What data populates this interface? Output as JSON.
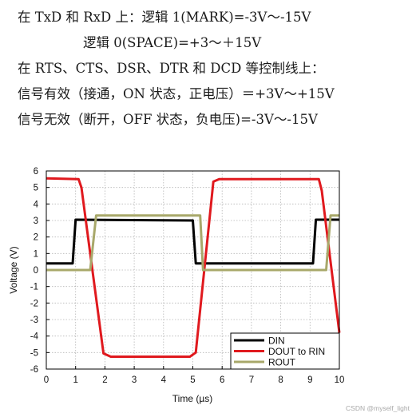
{
  "text": {
    "line1": "在 TxD 和 RxD 上：逻辑 1(MARK)=-3V～-15V",
    "line2": "逻辑 0(SPACE)=+3～＋15V",
    "line3": "在 RTS、CTS、DSR、DTR 和 DCD 等控制线上：",
    "line4": "信号有效（接通，ON 状态，正电压）＝+3V～+15V",
    "line5": "信号无效（断开，OFF 状态，负电压)=-3V～-15V"
  },
  "watermark": "CSDN @myself_light",
  "chart_data": {
    "type": "line",
    "xlabel": "Time (µs)",
    "ylabel": "Voltage (V)",
    "xlim": [
      0,
      10
    ],
    "ylim": [
      -6,
      6
    ],
    "xticks": [
      0,
      1,
      2,
      3,
      4,
      5,
      6,
      7,
      8,
      9,
      10
    ],
    "yticks": [
      6,
      5,
      4,
      3,
      2,
      1,
      0,
      -1,
      -2,
      -3,
      -4,
      -5,
      -6
    ],
    "grid": true,
    "legend_position": "bottom-right",
    "series": [
      {
        "name": "DIN",
        "color": "#000000",
        "x": [
          0,
          0.9,
          1.0,
          5.0,
          5.1,
          9.1,
          9.2,
          10
        ],
        "y": [
          0.4,
          0.4,
          3.05,
          3.0,
          0.4,
          0.4,
          3.05,
          3.05
        ]
      },
      {
        "name": "DOUT to RIN",
        "color": "#e0191e",
        "x": [
          0,
          1.1,
          1.2,
          1.95,
          2.2,
          4.9,
          5.1,
          5.7,
          5.9,
          9.3,
          9.4,
          10
        ],
        "y": [
          5.55,
          5.5,
          5.0,
          -5.05,
          -5.25,
          -5.25,
          -5.0,
          5.35,
          5.5,
          5.5,
          4.8,
          -3.8
        ]
      },
      {
        "name": "ROUT",
        "color": "#a8a86a",
        "x": [
          0,
          1.5,
          1.7,
          5.25,
          5.35,
          9.55,
          9.7,
          10
        ],
        "y": [
          0,
          0,
          3.3,
          3.3,
          0,
          0,
          3.3,
          3.3
        ]
      }
    ]
  }
}
